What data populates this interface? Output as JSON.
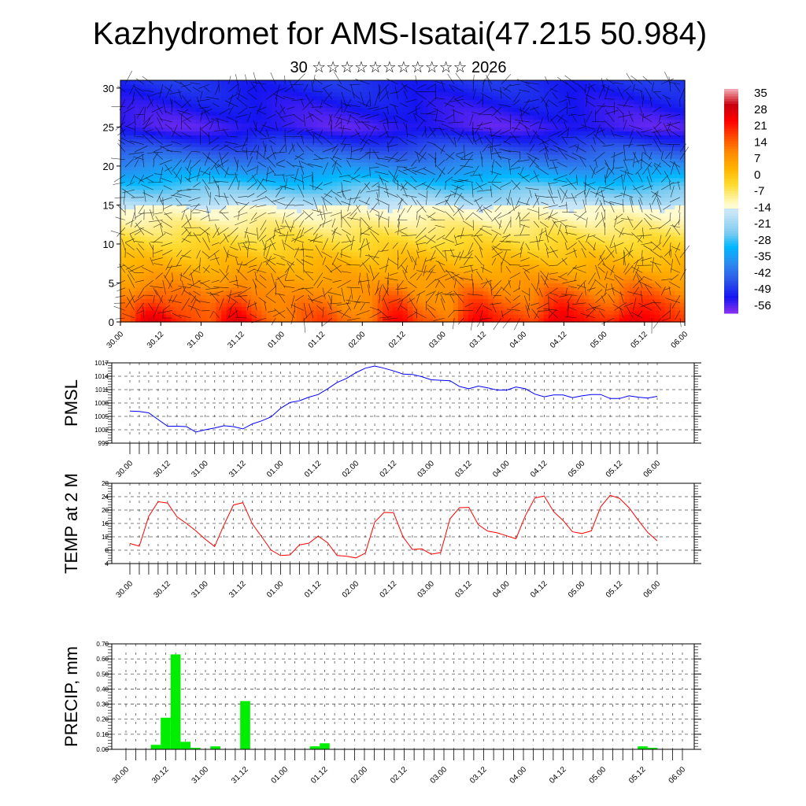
{
  "title": "Kazhydromet for AMS-Isatai(47.215 50.984)",
  "subtitle": "30 ☆☆☆☆☆☆☆☆☆☆☆ 2026",
  "time_labels": [
    "30.00",
    "30.12",
    "31.00",
    "31.12",
    "01.00",
    "01.12",
    "02.00",
    "02.12",
    "03.00",
    "03.12",
    "04.00",
    "04.12",
    "05.00",
    "05.12",
    "06.00"
  ],
  "chart_data": [
    {
      "type": "heatmap",
      "name": "cross-section",
      "xlabel": "",
      "ylabel": "",
      "yticks": [
        0,
        5,
        10,
        15,
        20,
        25,
        30
      ],
      "ylim": [
        0,
        31
      ],
      "colorbar": {
        "labels": [
          "35",
          "28",
          "21",
          "14",
          "7",
          "0",
          "-7",
          "-14",
          "-21",
          "-28",
          "-35",
          "-42",
          "-49",
          "-56"
        ],
        "colors": [
          "#f6b0b8",
          "#c80010",
          "#ff0000",
          "#ff4a00",
          "#ff8c00",
          "#ffb400",
          "#ffdc30",
          "#fffbd0",
          "#c8e6f8",
          "#7ecbf0",
          "#00b8ff",
          "#2c8cf0",
          "#2e5ce8",
          "#1414f0",
          "#8a30f0"
        ]
      },
      "temp_profile": {
        "height": [
          0,
          5,
          10,
          15,
          15.1,
          20,
          25,
          28,
          31
        ],
        "value": [
          20,
          8.5,
          -3,
          -14.5,
          -18,
          -38,
          -56,
          -53,
          -50
        ]
      }
    },
    {
      "type": "line",
      "name": "pmsl",
      "ylabel": "PMSL",
      "yticks": [
        "999",
        "1002",
        "1005",
        "1008",
        "1011",
        "1014",
        "1017"
      ],
      "ylim": [
        999,
        1017
      ],
      "step_hours": 3,
      "color": "#0000ff",
      "values": [
        1006.2,
        1006.1,
        1005.8,
        1004.3,
        1002.8,
        1002.8,
        1002.7,
        1001.5,
        1002.0,
        1002.4,
        1002.9,
        1002.7,
        1002.2,
        1003.3,
        1004.0,
        1004.9,
        1006.8,
        1008.1,
        1008.5,
        1009.3,
        1009.9,
        1011.2,
        1012.6,
        1013.5,
        1014.8,
        1015.8,
        1016.3,
        1015.8,
        1015.2,
        1014.5,
        1014.4,
        1013.9,
        1013.2,
        1013.1,
        1013.0,
        1011.7,
        1011.2,
        1011.8,
        1011.4,
        1010.9,
        1010.9,
        1011.6,
        1011.2,
        1010.0,
        1009.4,
        1009.8,
        1009.8,
        1009.2,
        1009.6,
        1009.9,
        1009.9,
        1009.0,
        1009.0,
        1009.6,
        1009.3,
        1009.1,
        1009.5
      ]
    },
    {
      "type": "line",
      "name": "temp-2m",
      "ylabel": "TEMP at 2 M",
      "yticks": [
        "4",
        "8",
        "12",
        "16",
        "20",
        "24",
        "28"
      ],
      "ylim": [
        4,
        28
      ],
      "step_hours": 3,
      "color": "#ff0000",
      "values": [
        10.0,
        9.2,
        18.1,
        22.5,
        22.1,
        18.0,
        16.0,
        13.8,
        11.3,
        9.1,
        15.6,
        21.5,
        22.2,
        15.9,
        12.0,
        8.0,
        6.4,
        6.6,
        9.6,
        10.1,
        12.2,
        10.2,
        6.4,
        6.2,
        5.7,
        7.1,
        16.4,
        19.3,
        19.2,
        12.0,
        8.2,
        8.4,
        6.8,
        7.3,
        17.4,
        20.7,
        20.8,
        15.6,
        13.7,
        13.2,
        12.3,
        11.4,
        18.3,
        23.6,
        24.2,
        19.5,
        16.9,
        13.5,
        13.0,
        13.8,
        21.0,
        24.4,
        23.5,
        20.7,
        16.9,
        13.3,
        10.8
      ]
    },
    {
      "type": "bar",
      "name": "precip",
      "ylabel": "PRECIP, mm",
      "yticks": [
        "0.00",
        "0.10",
        "0.20",
        "0.30",
        "0.40",
        "0.50",
        "0.60",
        "0.70"
      ],
      "ylim": [
        0,
        0.7
      ],
      "step_hours": 3,
      "color": "#00ee00",
      "bars": [
        [
          3,
          0.03
        ],
        [
          4,
          0.21
        ],
        [
          5,
          0.63
        ],
        [
          6,
          0.05
        ],
        [
          7,
          0.01
        ],
        [
          9,
          0.02
        ],
        [
          12,
          0.32
        ],
        [
          19,
          0.02
        ],
        [
          20,
          0.04
        ],
        [
          52,
          0.02
        ],
        [
          53,
          0.01
        ]
      ]
    }
  ]
}
